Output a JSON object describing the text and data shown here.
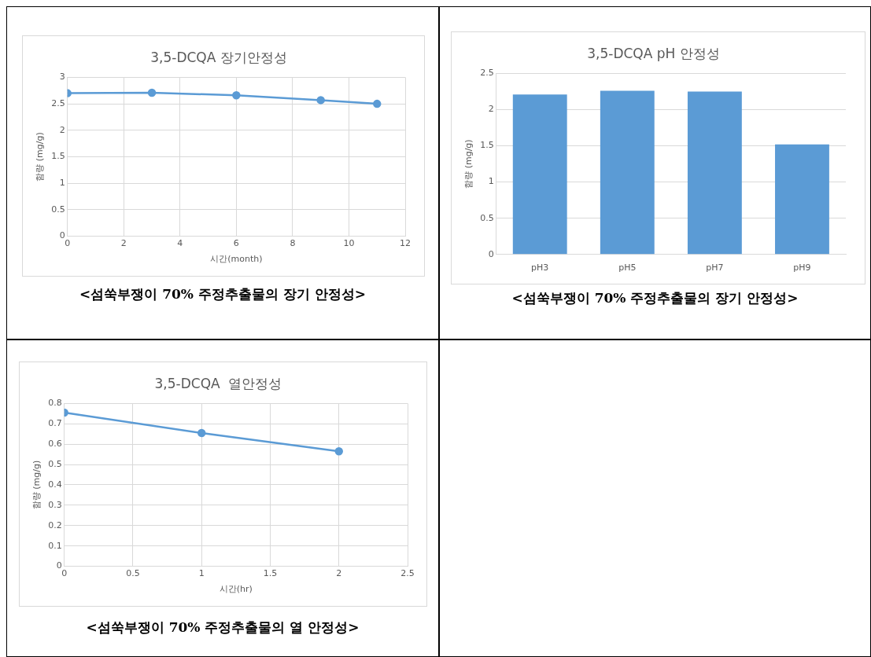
{
  "chart_data": [
    {
      "type": "line",
      "title": "3,5-DCQA 장기안정성",
      "xlabel": "시간(month)",
      "ylabel": "함량 (mg/g)",
      "x": [
        0,
        3,
        6,
        9,
        11
      ],
      "series": [
        {
          "color": "#5b9bd5",
          "values": [
            2.7,
            2.71,
            2.66,
            2.57,
            2.5
          ]
        }
      ],
      "xlim": [
        0,
        12
      ],
      "xticks": [
        0,
        2,
        4,
        6,
        8,
        10,
        12
      ],
      "ylim": [
        0,
        3
      ],
      "yticks": [
        0,
        0.5,
        1,
        1.5,
        2,
        2.5,
        3
      ],
      "grid": true,
      "marker": "circle",
      "line_style": "solid",
      "annotations": [
        "<섬쑥부쟁이 70% 주정추출물의 장기 안정성>"
      ]
    },
    {
      "type": "bar",
      "title": "3,5-DCQA pH 안정성",
      "ylabel": "함량 (mg/g)",
      "categories": [
        "pH3",
        "pH5",
        "pH7",
        "pH9"
      ],
      "series": [
        {
          "color": "#5b9bd5",
          "values": [
            2.21,
            2.26,
            2.25,
            1.52
          ]
        }
      ],
      "ylim": [
        0,
        2.5
      ],
      "yticks": [
        0,
        0.5,
        1,
        1.5,
        2,
        2.5
      ],
      "grid": "y",
      "annotations": [
        "<섬쑥부쟁이 70% 주정추출물의 장기 안정성>"
      ]
    },
    {
      "type": "line",
      "title": "3,5-DCQA  열안정성",
      "xlabel": "시간(hr)",
      "ylabel": "함량 (mg/g)",
      "x": [
        0,
        1,
        2
      ],
      "series": [
        {
          "color": "#5b9bd5",
          "values": [
            0.755,
            0.655,
            0.565
          ]
        }
      ],
      "xlim": [
        0,
        2.5
      ],
      "xticks": [
        0,
        0.5,
        1,
        1.5,
        2,
        2.5
      ],
      "ylim": [
        0,
        0.8
      ],
      "yticks": [
        0,
        0.1,
        0.2,
        0.3,
        0.4,
        0.5,
        0.6,
        0.7,
        0.8
      ],
      "grid": true,
      "marker": "circle",
      "line_style": "solid",
      "annotations": [
        "<섬쑥부쟁이 70% 주정추출물의 열 안정성>"
      ]
    }
  ]
}
